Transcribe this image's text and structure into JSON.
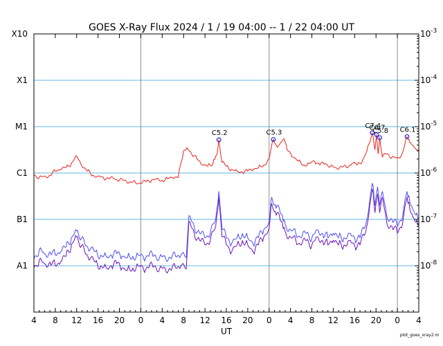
{
  "chart_data": {
    "type": "line",
    "title": "GOES X-Ray Flux   2024 /  1 / 19   04:00 --  1 / 22   04:00   UT",
    "xlabel": "UT",
    "x_tick_labels": [
      "4",
      "8",
      "12",
      "16",
      "20",
      "0",
      "4",
      "8",
      "12",
      "16",
      "20",
      "0",
      "4",
      "8",
      "12",
      "16",
      "20",
      "0",
      "4"
    ],
    "x_range_hours": [
      0,
      72
    ],
    "day_boundaries_hours": [
      20,
      44,
      68
    ],
    "y_scale": "log",
    "ylim": [
      1e-09,
      0.001
    ],
    "y_class_labels": [
      {
        "label": "X10",
        "value": 0.001
      },
      {
        "label": "X1",
        "value": 0.0001
      },
      {
        "label": "M1",
        "value": 1e-05
      },
      {
        "label": "C1",
        "value": 1e-06
      },
      {
        "label": "B1",
        "value": 1e-07
      },
      {
        "label": "A1",
        "value": 1e-08
      }
    ],
    "y_right_tick_labels": [
      {
        "label": "10^-3",
        "value": 0.001
      },
      {
        "label": "10^-4",
        "value": 0.0001
      },
      {
        "label": "10^-5",
        "value": 1e-05
      },
      {
        "label": "10^-6",
        "value": 1e-06
      },
      {
        "label": "10^-7",
        "value": 1e-07
      },
      {
        "label": "10^-8",
        "value": 1e-08
      }
    ],
    "grid": "horizontal-at-decades",
    "flares": [
      {
        "label": "C5.2",
        "x": 34.6,
        "y": 5.2e-06
      },
      {
        "label": "C5.3",
        "x": 44.8,
        "y": 5.3e-06
      },
      {
        "label": "C7.4",
        "x": 63.3,
        "y": 7.4e-06
      },
      {
        "label": "C6.7",
        "x": 64.1,
        "y": 6.7e-06
      },
      {
        "label": "C5.8",
        "x": 64.7,
        "y": 5.8e-06
      },
      {
        "label": "C6.1",
        "x": 69.8,
        "y": 6.1e-06
      }
    ],
    "series": [
      {
        "key": "long",
        "color": "#e8221c",
        "x": [
          0,
          1,
          2,
          3,
          4,
          5,
          6,
          7,
          7.8,
          8.4,
          9,
          10,
          11,
          12,
          13,
          14,
          15,
          16,
          17,
          18,
          19,
          20,
          21,
          22,
          23,
          24,
          25,
          26,
          27,
          28,
          28.6,
          29.5,
          30.5,
          31.5,
          32.5,
          33.5,
          34.2,
          34.6,
          35.2,
          36,
          37,
          38,
          39,
          40,
          41,
          42,
          43,
          44,
          44.4,
          44.8,
          45.4,
          46,
          46.8,
          47.5,
          48.5,
          49.5,
          50.5,
          51.5,
          52.5,
          53.5,
          54.5,
          55.5,
          56.5,
          57.5,
          58.5,
          59.5,
          60.5,
          61.5,
          62.3,
          63.3,
          63.8,
          64.1,
          64.4,
          64.7,
          65.2,
          66,
          67,
          68,
          68.8,
          69.8,
          70.5,
          71.2,
          72
        ],
        "y": [
          9e-07,
          8e-07,
          8.5e-07,
          9e-07,
          1.1e-06,
          1.2e-06,
          1.3e-06,
          1.6e-06,
          2.3e-06,
          1.9e-06,
          1.4e-06,
          1.1e-06,
          9e-07,
          8.5e-07,
          8e-07,
          7.5e-07,
          7.5e-07,
          7e-07,
          7e-07,
          6.5e-07,
          6.2e-07,
          6e-07,
          6.5e-07,
          7e-07,
          7.5e-07,
          7e-07,
          7.5e-07,
          8e-07,
          8e-07,
          3e-06,
          3.5e-06,
          2.6e-06,
          2e-06,
          1.5e-06,
          1.4e-06,
          1.6e-06,
          2.4e-06,
          5.2e-06,
          1.7e-06,
          1.4e-06,
          1.2e-06,
          1.1e-06,
          1.05e-06,
          1.1e-06,
          1.2e-06,
          1.3e-06,
          1.5e-06,
          2e-06,
          3.5e-06,
          5.3e-06,
          3.8e-06,
          4.2e-06,
          5.5e-06,
          3e-06,
          2.2e-06,
          1.8e-06,
          1.5e-06,
          1.6e-06,
          1.8e-06,
          1.5e-06,
          1.6e-06,
          1.4e-06,
          1.3e-06,
          1.4e-06,
          1.3e-06,
          1.6e-06,
          1.5e-06,
          1.9e-06,
          3e-06,
          7.4e-06,
          3.2e-06,
          6.7e-06,
          2.6e-06,
          5.8e-06,
          2.2e-06,
          2.6e-06,
          2.2e-06,
          2.1e-06,
          2.5e-06,
          6.1e-06,
          4.5e-06,
          3.5e-06,
          3e-06
        ]
      },
      {
        "key": "short",
        "color": "#4a4cf0",
        "x": [
          0,
          1,
          2,
          3,
          4,
          5,
          6,
          7,
          7.8,
          8.5,
          9.5,
          10.5,
          11.5,
          12.5,
          13.5,
          14.5,
          15.5,
          16.5,
          17.5,
          18.5,
          19.5,
          20.5,
          21.5,
          22.5,
          23.5,
          24.5,
          25.5,
          26.5,
          27.5,
          28.5,
          29,
          30,
          31,
          32,
          33,
          34,
          34.6,
          35.2,
          36,
          37,
          38,
          39,
          40,
          41,
          42,
          43,
          44,
          44.5,
          44.8,
          45.5,
          46.3,
          47,
          48,
          49,
          50,
          51,
          52,
          53,
          54,
          55,
          56,
          57,
          58,
          59,
          60,
          61,
          62,
          62.6,
          63.3,
          63.8,
          64.3,
          64.7,
          65.2,
          66,
          67,
          68,
          69,
          69.8,
          70.5,
          71.3,
          72
        ],
        "y": [
          1.4e-08,
          2.2e-08,
          1.8e-08,
          2e-08,
          1.7e-08,
          2e-08,
          2.5e-08,
          4e-08,
          6e-08,
          4e-08,
          3e-08,
          2.2e-08,
          2e-08,
          1.7e-08,
          1.6e-08,
          1.7e-08,
          1.8e-08,
          1.6e-08,
          1.5e-08,
          1.6e-08,
          1.7e-08,
          1.5e-08,
          1.6e-08,
          1.7e-08,
          1.5e-08,
          1.6e-08,
          1.5e-08,
          1.6e-08,
          1.7e-08,
          1.5e-08,
          1.2e-07,
          7e-08,
          5e-08,
          4e-08,
          5e-08,
          1e-07,
          4e-07,
          6e-08,
          4e-08,
          3e-08,
          4e-08,
          5e-08,
          4e-08,
          3e-08,
          4e-08,
          6e-08,
          9e-08,
          3e-07,
          2.2e-07,
          2e-07,
          1.3e-07,
          8e-08,
          6e-08,
          5e-08,
          4e-08,
          5e-08,
          4e-08,
          6e-08,
          5e-08,
          4e-08,
          5e-08,
          4e-08,
          4e-08,
          5e-08,
          4e-08,
          4e-08,
          7e-08,
          1.5e-07,
          6e-07,
          2e-07,
          5e-07,
          2e-07,
          4e-07,
          1.2e-07,
          1e-07,
          7e-08,
          1.2e-07,
          4e-07,
          2e-07,
          1.3e-07,
          1.1e-07
        ]
      },
      {
        "key": "short-secondary",
        "color": "#6a12b8",
        "x": [
          0,
          1,
          2,
          3,
          4,
          5,
          6,
          7,
          7.8,
          8.5,
          9.5,
          10.5,
          11.5,
          12.5,
          13.5,
          14.5,
          15.5,
          16.5,
          17.5,
          18.5,
          19.5,
          20.5,
          21.5,
          22.5,
          23.5,
          24.5,
          25.5,
          26.5,
          27.5,
          28.5,
          29,
          30,
          31,
          32,
          33,
          34,
          34.6,
          35.2,
          36,
          37,
          38,
          39,
          40,
          41,
          42,
          43,
          44,
          44.5,
          44.8,
          45.5,
          46.3,
          47,
          48,
          49,
          50,
          51,
          52,
          53,
          54,
          55,
          56,
          57,
          58,
          59,
          60,
          61,
          62,
          62.6,
          63.3,
          63.8,
          64.3,
          64.7,
          65.2,
          66,
          67,
          68,
          69,
          69.8,
          70.5,
          71.3,
          72
        ],
        "y": [
          9e-09,
          1.3e-08,
          1.1e-08,
          1.2e-08,
          1e-08,
          1.2e-08,
          1.6e-08,
          2.8e-08,
          4.5e-08,
          2.8e-08,
          2e-08,
          1.4e-08,
          1.2e-08,
          1e-08,
          9e-09,
          1e-08,
          1.1e-08,
          9e-09,
          8e-09,
          9e-09,
          1e-08,
          8.5e-09,
          9e-09,
          1e-08,
          8.5e-09,
          9e-09,
          8.5e-09,
          9e-09,
          1e-08,
          8.5e-09,
          9e-08,
          5e-08,
          3.5e-08,
          2.8e-08,
          3.5e-08,
          7e-08,
          3e-07,
          4.2e-08,
          2.8e-08,
          2e-08,
          2.8e-08,
          3.5e-08,
          2.8e-08,
          2e-08,
          2.8e-08,
          4.2e-08,
          6.5e-08,
          2.2e-07,
          1.6e-07,
          1.4e-07,
          9e-08,
          5.5e-08,
          4.2e-08,
          3.5e-08,
          2.8e-08,
          3.5e-08,
          2.8e-08,
          4.2e-08,
          3.5e-08,
          2.8e-08,
          3.5e-08,
          2.8e-08,
          2.8e-08,
          3.5e-08,
          2.8e-08,
          2.8e-08,
          5e-08,
          1.1e-07,
          4.5e-07,
          1.4e-07,
          3.5e-07,
          1.4e-07,
          3e-07,
          8.5e-08,
          7e-08,
          5e-08,
          8.5e-08,
          3e-07,
          1.4e-07,
          9e-08,
          8e-08
        ]
      }
    ]
  },
  "footer_note": "plot_goes_xray2.m"
}
